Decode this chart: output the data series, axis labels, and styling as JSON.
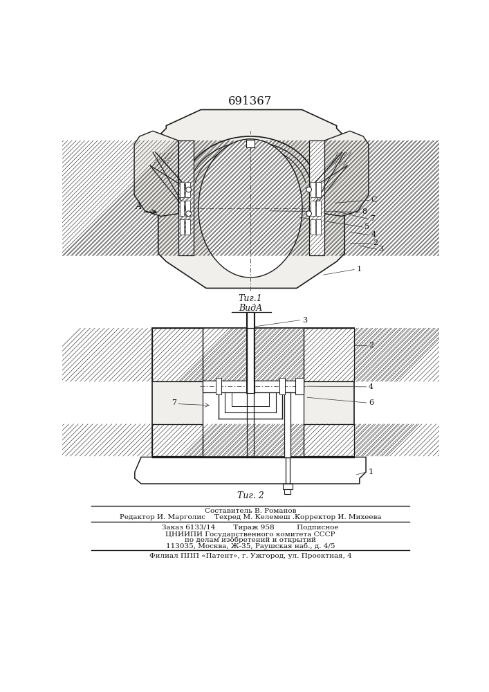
{
  "patent_number": "691367",
  "fig1_caption": "Τиг.1",
  "fig2_caption": "Τиг. 2",
  "view_label": "ВидА",
  "footer_lines": [
    "Составитель В. Романов",
    "Редактор И. Марголис    Техред М. Келемеш .Корректор И. Михеева",
    "Заказ 6133/14        Тираж 958          Подписное",
    "ЦНИИПИ Государственного комитета СССР",
    "по делам изобретений и открытий",
    "113035, Москва, Ж-35, Раушская наб., д. 4/5",
    "Филиал ППП «Патент», г. Ужгород, ул. Проектная, 4"
  ],
  "bg_color": "#f5f4f0",
  "line_color": "#1a1a1a"
}
